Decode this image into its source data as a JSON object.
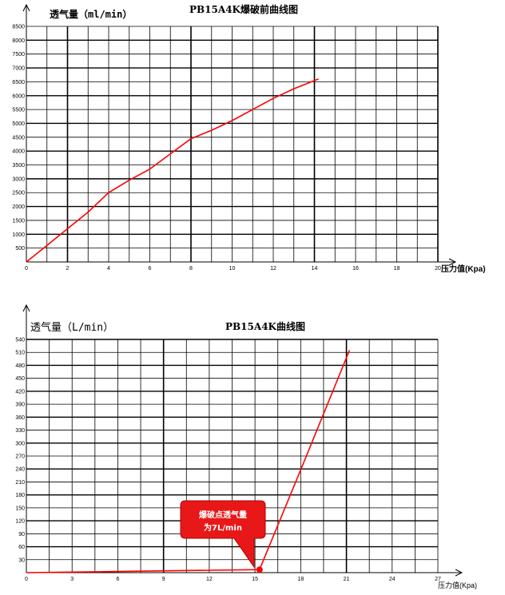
{
  "chart_data": [
    {
      "type": "line",
      "title": "PB15A4K爆破前曲线图",
      "ylabel": "透气量（ml/min）",
      "xlabel": "压力值(Kpa)",
      "xlim": [
        0,
        20
      ],
      "ylim": [
        0,
        8500
      ],
      "x_ticks": [
        0,
        2,
        4,
        6,
        8,
        10,
        12,
        14,
        16,
        18,
        20
      ],
      "y_ticks": [
        500,
        1000,
        1500,
        2000,
        2500,
        3000,
        3500,
        4000,
        4500,
        5000,
        5500,
        6000,
        6500,
        7000,
        7500,
        8000,
        8500
      ],
      "grid": true,
      "series": [
        {
          "color": "#ff0000",
          "x": [
            0,
            1,
            2,
            3,
            4,
            5,
            6,
            7,
            8,
            9,
            10,
            11,
            12,
            13,
            14.2
          ],
          "y": [
            0,
            600,
            1200,
            1800,
            2500,
            2950,
            3350,
            3900,
            4450,
            4750,
            5100,
            5500,
            5900,
            6250,
            6600
          ]
        }
      ]
    },
    {
      "type": "line",
      "title": "PB15A4K曲线图",
      "ylabel": "透气量（L/min）",
      "xlabel": "压力值(Kpa)",
      "xlim": [
        0,
        27
      ],
      "ylim": [
        0,
        540
      ],
      "x_ticks": [
        0,
        3,
        6,
        9,
        12,
        15,
        18,
        21,
        24,
        27
      ],
      "y_ticks": [
        30,
        60,
        90,
        120,
        150,
        180,
        210,
        240,
        270,
        300,
        330,
        360,
        390,
        420,
        450,
        480,
        510,
        540
      ],
      "grid": true,
      "annotation": "爆破点透气量为7L/min",
      "series": [
        {
          "color": "#ff0000",
          "x": [
            0,
            15.3,
            18.2,
            21.2
          ],
          "y": [
            0,
            7,
            255,
            515
          ]
        }
      ]
    }
  ]
}
